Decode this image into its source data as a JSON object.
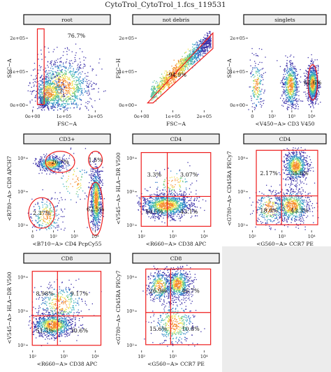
{
  "figure_title": "CytoTrol_CytoTrol_1.fcs_119531",
  "colors": {
    "gate": "#ee1c1c",
    "strip_bg": "#eeeeee",
    "empty_panel": "#ececec",
    "density": [
      "#3a2fa8",
      "#2f7ac8",
      "#36b0c0",
      "#6cc87a",
      "#f1e04a",
      "#f58c2e",
      "#d61f1f"
    ]
  },
  "chart_data": [
    {
      "type": "scatter",
      "panel": "root",
      "xlabel": "FSC−A",
      "ylabel": "SSC−A",
      "x_ticks": [
        "0e+00",
        "1e+05",
        "2e+05"
      ],
      "y_ticks": [
        "0e+00",
        "1e+05",
        "2e+05"
      ],
      "xlim": [
        -20000,
        270000
      ],
      "ylim": [
        -15000,
        270000
      ],
      "x_scale": "linear",
      "y_scale": "linear",
      "gates": [
        {
          "shape": "rectangle",
          "x": [
            15000,
            40000
          ],
          "y": [
            5000,
            262000
          ],
          "label": "76.7%"
        }
      ],
      "clusters": [
        {
          "x": 40000,
          "y": 15000,
          "sx": 7000,
          "sy": 9000,
          "n": 300
        },
        {
          "x": 110000,
          "y": 65000,
          "sx": 55000,
          "sy": 50000,
          "n": 1000
        },
        {
          "x": 60000,
          "y": 45000,
          "sx": 30000,
          "sy": 30000,
          "n": 500
        }
      ]
    },
    {
      "type": "scatter",
      "panel": "not debris",
      "xlabel": "FSC−A",
      "ylabel": "FSC−H",
      "x_ticks": [
        "0e+00",
        "1e+05",
        "2e+05"
      ],
      "y_ticks": [
        "0e+00",
        "1e+05",
        "2e+05"
      ],
      "xlim": [
        -20000,
        270000
      ],
      "ylim": [
        -15000,
        270000
      ],
      "x_scale": "linear",
      "y_scale": "linear",
      "gates": [
        {
          "shape": "polygon",
          "points": [
            [
              20000,
              10000
            ],
            [
              262000,
              248000
            ],
            [
              262000,
              195000
            ],
            [
              40000,
              10000
            ]
          ],
          "label": "94.9%"
        }
      ],
      "clusters": [
        {
          "diagonal": true,
          "x0": 30000,
          "x1": 255000,
          "slope": 0.86,
          "offset": 8000,
          "spread": 14000,
          "n": 1300
        }
      ]
    },
    {
      "type": "scatter",
      "panel": "singlets",
      "xlabel": "<V450−A> CD3 V450",
      "ylabel": "SSC−A",
      "x_ticks": [
        "0",
        "10²",
        "10³",
        "10⁴"
      ],
      "y_ticks": [
        "0e+00",
        "1e+05",
        "2e+05"
      ],
      "xlim": [
        -0.5,
        4.7
      ],
      "ylim": [
        -15000,
        270000
      ],
      "x_scale": "log",
      "y_scale": "linear",
      "gates": [
        {
          "shape": "ellipse",
          "cx": 4.05,
          "cy": 80000,
          "rx": 0.33,
          "ry": 60000,
          "label": "62.6%"
        }
      ],
      "clusters": [
        {
          "x": 2.5,
          "y": 70000,
          "sx": 0.28,
          "sy": 40000,
          "n": 600
        },
        {
          "x": 4.05,
          "y": 75000,
          "sx": 0.2,
          "sy": 30000,
          "n": 900
        },
        {
          "x": 0.1,
          "y": 70000,
          "sx": 0.25,
          "sy": 45000,
          "n": 200
        }
      ]
    },
    {
      "type": "scatter",
      "panel": "CD3+",
      "xlabel": "<B710−A> CD4 PcpCy55",
      "ylabel": "<R780−A> CD8 APCH7",
      "x_ticks": [
        "0",
        "10²",
        "10³",
        "10⁴"
      ],
      "y_ticks": [
        "10²",
        "10³",
        "10⁴"
      ],
      "xlim": [
        -0.5,
        4.6
      ],
      "ylim": [
        0.8,
        4.9
      ],
      "x_scale": "log",
      "y_scale": "log",
      "gates": [
        {
          "shape": "ellipse",
          "cx": 1.6,
          "cy": 4.15,
          "rx": 0.95,
          "ry": 0.52,
          "label": "26.7%"
        },
        {
          "shape": "ellipse",
          "cx": 3.9,
          "cy": 4.25,
          "rx": 0.45,
          "ry": 0.42,
          "label": "1.5%"
        },
        {
          "shape": "ellipse",
          "cx": 0.4,
          "cy": 1.65,
          "rx": 0.85,
          "ry": 0.75,
          "label": "2.37%"
        },
        {
          "shape": "ellipse",
          "cx": 3.9,
          "cy": 1.85,
          "rx": 0.5,
          "ry": 1.3,
          "label": "62.5%"
        }
      ],
      "clusters": [
        {
          "x": 1.0,
          "y": 4.05,
          "sx": 0.45,
          "sy": 0.18,
          "n": 500
        },
        {
          "x": 3.95,
          "y": 2.3,
          "sx": 0.17,
          "sy": 0.8,
          "n": 900
        },
        {
          "x": 0.7,
          "y": 1.5,
          "sx": 0.5,
          "sy": 0.5,
          "n": 250
        },
        {
          "x": 2.5,
          "y": 3.2,
          "sx": 0.6,
          "sy": 0.6,
          "n": 100
        }
      ]
    },
    {
      "type": "scatter",
      "panel": "CD4",
      "xlabel": "<R660−A> CD38 APC",
      "ylabel": "<V545−A> HLA−DR V500",
      "x_ticks": [
        "10²",
        "10³",
        "10⁴"
      ],
      "y_ticks": [
        "10²",
        "10³",
        "10⁴"
      ],
      "xlim": [
        0.3,
        4.8
      ],
      "ylim": [
        0.3,
        4.5
      ],
      "x_scale": "log",
      "y_scale": "log",
      "gates": [
        {
          "shape": "quadrant",
          "x0": 0.55,
          "x1": 4.55,
          "y0": 0.5,
          "y1": 4.2,
          "qx": 2.05,
          "qy": 2.0,
          "labels": [
            "3.3%",
            "3.07%",
            "50.5%",
            "43.1%"
          ]
        }
      ],
      "clusters": [
        {
          "x": 2.0,
          "y": 1.55,
          "sx": 0.75,
          "sy": 0.3,
          "n": 1200
        },
        {
          "x": 2.4,
          "y": 2.7,
          "sx": 0.6,
          "sy": 0.4,
          "n": 100
        }
      ]
    },
    {
      "type": "scatter",
      "panel": "CD4",
      "xlabel": "<G560−A> CCR7 PE",
      "ylabel": "<G780−A> CD45RA PECy7",
      "x_ticks": [
        "10²",
        "10³",
        "10⁴"
      ],
      "y_ticks": [
        "10²",
        "10³",
        "10⁴"
      ],
      "xlim": [
        0.3,
        4.7
      ],
      "ylim": [
        0.3,
        4.8
      ],
      "x_scale": "log",
      "y_scale": "log",
      "gates": [
        {
          "shape": "quadrant",
          "x0": 0.8,
          "x1": 4.45,
          "y0": 0.6,
          "y1": 4.6,
          "qx": 2.3,
          "qy": 2.15,
          "labels": [
            "2.17%",
            "35.6%",
            "18.9%",
            "43.3%"
          ]
        }
      ],
      "clusters": [
        {
          "x": 3.15,
          "y": 3.75,
          "sx": 0.35,
          "sy": 0.4,
          "n": 700
        },
        {
          "x": 2.9,
          "y": 1.6,
          "sx": 0.55,
          "sy": 0.45,
          "n": 700
        },
        {
          "x": 1.6,
          "y": 1.5,
          "sx": 0.45,
          "sy": 0.5,
          "n": 250
        }
      ]
    },
    {
      "type": "scatter",
      "panel": "CD8",
      "xlabel": "<R660−A> CD38 APC",
      "ylabel": "<V545−A> HLA−DR V500",
      "x_ticks": [
        "10²",
        "10³",
        "10⁴"
      ],
      "y_ticks": [
        "10²",
        "10³",
        "10⁴"
      ],
      "xlim": [
        0.3,
        4.8
      ],
      "ylim": [
        0.3,
        4.5
      ],
      "x_scale": "log",
      "y_scale": "log",
      "gates": [
        {
          "shape": "quadrant",
          "x0": 0.55,
          "x1": 4.5,
          "y0": 0.55,
          "y1": 4.2,
          "qx": 2.0,
          "qy": 2.0,
          "labels": [
            "8.98%",
            "9.17%",
            "51.3%",
            "30.6%"
          ]
        }
      ],
      "clusters": [
        {
          "x": 1.75,
          "y": 1.55,
          "sx": 0.6,
          "sy": 0.3,
          "n": 900
        },
        {
          "x": 2.2,
          "y": 2.6,
          "sx": 0.7,
          "sy": 0.5,
          "n": 350
        }
      ]
    },
    {
      "type": "scatter",
      "panel": "CD8",
      "xlabel": "<G560−A> CCR7 PE",
      "ylabel": "<G780−A> CD45RA PECy7",
      "x_ticks": [
        "10²",
        "10³",
        "10⁴"
      ],
      "y_ticks": [
        "10²",
        "10³",
        "10⁴"
      ],
      "xlim": [
        0.3,
        4.7
      ],
      "ylim": [
        0.3,
        4.8
      ],
      "x_scale": "log",
      "y_scale": "log",
      "gates": [
        {
          "shape": "quadrant",
          "x0": 0.8,
          "x1": 4.45,
          "y0": 0.6,
          "y1": 4.6,
          "qx": 2.2,
          "qy": 2.3,
          "labels": [
            "26.9%",
            "46.7%",
            "15.6%",
            "10.8%"
          ]
        }
      ],
      "clusters": [
        {
          "x": 2.6,
          "y": 3.8,
          "sx": 0.35,
          "sy": 0.4,
          "n": 650
        },
        {
          "x": 1.6,
          "y": 3.7,
          "sx": 0.35,
          "sy": 0.4,
          "n": 350
        },
        {
          "x": 2.4,
          "y": 1.7,
          "sx": 0.6,
          "sy": 0.6,
          "n": 400
        }
      ]
    }
  ]
}
